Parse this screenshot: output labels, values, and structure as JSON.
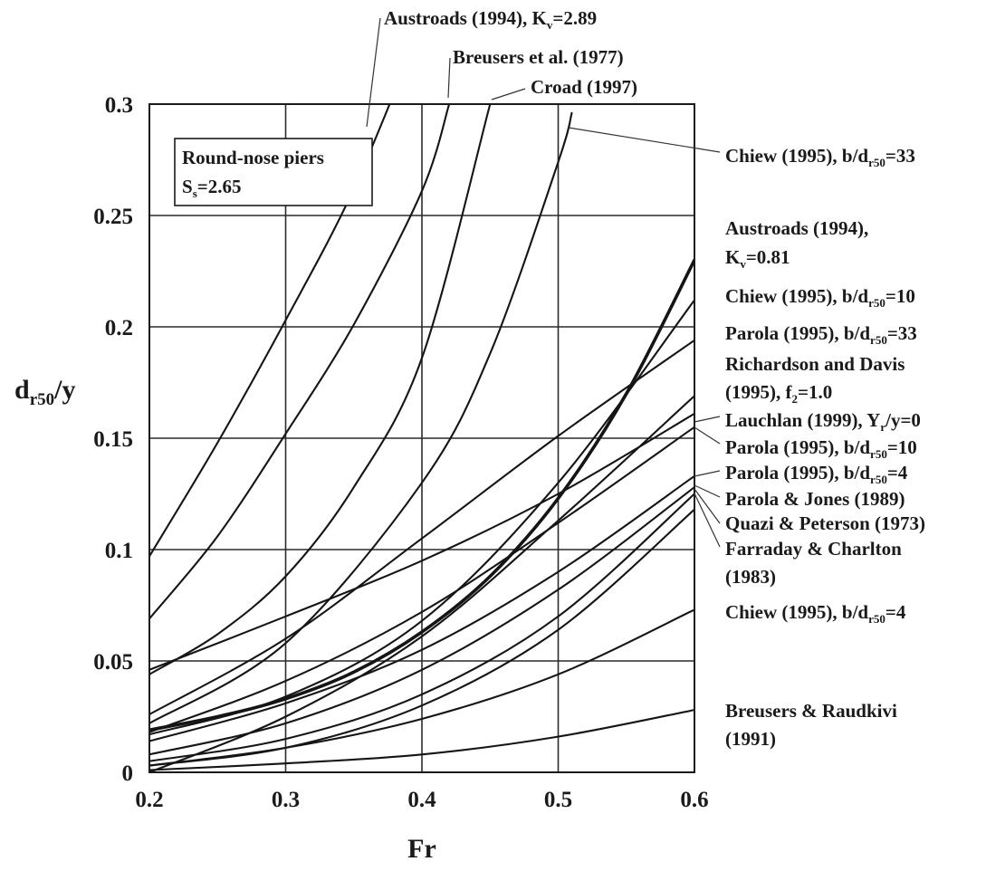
{
  "chart_data": {
    "type": "line",
    "xlabel": "Fr",
    "ylabel": {
      "main": "d",
      "sub": "r50",
      "tail": "/y"
    },
    "xlim": [
      0.2,
      0.6
    ],
    "ylim": [
      0,
      0.3
    ],
    "x_ticks": [
      "0.2",
      "0.3",
      "0.4",
      "0.5",
      "0.6"
    ],
    "y_ticks": [
      "0",
      "0.05",
      "0.1",
      "0.15",
      "0.2",
      "0.25",
      "0.3"
    ],
    "grid": true,
    "annotation_box": {
      "line1": "Round-nose piers",
      "line2": {
        "main": "S",
        "sub": "s",
        "tail": "=2.65"
      }
    },
    "series": [
      {
        "name": "Austroads (1994), Kv=2.89",
        "x": [
          0.2,
          0.25,
          0.3,
          0.35,
          0.4
        ],
        "y": [
          0.097,
          0.148,
          0.203,
          0.262,
          0.336
        ]
      },
      {
        "name": "Breusers et al. (1977)",
        "x": [
          0.2,
          0.25,
          0.3,
          0.35,
          0.4,
          0.42
        ],
        "y": [
          0.069,
          0.106,
          0.152,
          0.201,
          0.261,
          0.3
        ]
      },
      {
        "name": "Croad (1997)",
        "x": [
          0.2,
          0.25,
          0.3,
          0.35,
          0.4,
          0.45
        ],
        "y": [
          0.044,
          0.062,
          0.088,
          0.128,
          0.186,
          0.3
        ]
      },
      {
        "name": "Chiew (1995), b/dr50=33",
        "x": [
          0.2,
          0.3,
          0.4,
          0.45,
          0.5,
          0.51
        ],
        "y": [
          0.022,
          0.058,
          0.13,
          0.188,
          0.274,
          0.296
        ]
      },
      {
        "name": "Austroads (1994), Kv=0.81",
        "x": [
          0.2,
          0.25,
          0.3,
          0.35,
          0.4,
          0.45,
          0.5,
          0.55,
          0.6
        ],
        "y": [
          0.019,
          0.025,
          0.033,
          0.045,
          0.063,
          0.088,
          0.123,
          0.17,
          0.23
        ]
      },
      {
        "name": "Chiew (1995), b/dr50=10",
        "x": [
          0.2,
          0.3,
          0.4,
          0.5,
          0.6
        ],
        "y": [
          0.017,
          0.034,
          0.068,
          0.13,
          0.212
        ]
      },
      {
        "name": "Parola (1995), b/dr50=33",
        "x": [
          0.2,
          0.3,
          0.4,
          0.5,
          0.6
        ],
        "y": [
          0.026,
          0.06,
          0.105,
          0.151,
          0.194
        ]
      },
      {
        "name": "Richardson and Davis (1995), f2=1.0",
        "x": [
          0.2,
          0.3,
          0.4,
          0.5,
          0.6
        ],
        "y": [
          0.0,
          0.025,
          0.061,
          0.113,
          0.169
        ]
      },
      {
        "name": "Lauchlan (1999), Yr/y=0",
        "x": [
          0.2,
          0.3,
          0.4,
          0.5,
          0.6
        ],
        "y": [
          0.046,
          0.07,
          0.095,
          0.125,
          0.161
        ]
      },
      {
        "name": "Parola (1995), b/dr50=10",
        "x": [
          0.2,
          0.3,
          0.4,
          0.5,
          0.6
        ],
        "y": [
          0.018,
          0.041,
          0.072,
          0.112,
          0.155
        ]
      },
      {
        "name": "Parola (1995), b/dr50=4",
        "x": [
          0.2,
          0.3,
          0.4,
          0.5,
          0.6
        ],
        "y": [
          0.014,
          0.031,
          0.055,
          0.09,
          0.133
        ]
      },
      {
        "name": "Parola & Jones (1989)",
        "x": [
          0.2,
          0.3,
          0.4,
          0.5,
          0.6
        ],
        "y": [
          0.008,
          0.022,
          0.046,
          0.082,
          0.128
        ]
      },
      {
        "name": "Quazi & Peterson (1973)",
        "x": [
          0.2,
          0.3,
          0.4,
          0.5,
          0.6
        ],
        "y": [
          0.005,
          0.015,
          0.035,
          0.07,
          0.125
        ]
      },
      {
        "name": "Farraday & Charlton (1983)",
        "x": [
          0.2,
          0.3,
          0.4,
          0.5,
          0.6
        ],
        "y": [
          0.003,
          0.011,
          0.03,
          0.064,
          0.118
        ]
      },
      {
        "name": "Chiew (1995), b/dr50=4",
        "x": [
          0.2,
          0.3,
          0.4,
          0.5,
          0.6
        ],
        "y": [
          0.003,
          0.011,
          0.024,
          0.044,
          0.073
        ]
      },
      {
        "name": "Breusers & Raudkivi (1991)",
        "x": [
          0.2,
          0.3,
          0.4,
          0.5,
          0.6
        ],
        "y": [
          0.001,
          0.004,
          0.008,
          0.016,
          0.028
        ]
      }
    ],
    "labels": [
      {
        "id": "austroads-kv289",
        "parts": [
          {
            "t": "Austroads (1994), K"
          },
          {
            "t": "v",
            "sub": true
          },
          {
            "t": "=2.89"
          }
        ]
      },
      {
        "id": "breusers-1977",
        "parts": [
          {
            "t": "Breusers et al. (1977)"
          }
        ]
      },
      {
        "id": "croad-1997",
        "parts": [
          {
            "t": "Croad (1997)"
          }
        ]
      },
      {
        "id": "chiew-33",
        "parts": [
          {
            "t": "Chiew (1995), b/d"
          },
          {
            "t": "r50",
            "sub": true
          },
          {
            "t": "=33"
          }
        ]
      },
      {
        "id": "austroads-kv081-a",
        "parts": [
          {
            "t": "Austroads (1994),"
          }
        ]
      },
      {
        "id": "austroads-kv081-b",
        "parts": [
          {
            "t": "K"
          },
          {
            "t": "v",
            "sub": true
          },
          {
            "t": "=0.81"
          }
        ]
      },
      {
        "id": "chiew-10",
        "parts": [
          {
            "t": "Chiew (1995), b/d"
          },
          {
            "t": "r50",
            "sub": true
          },
          {
            "t": "=10"
          }
        ]
      },
      {
        "id": "parola-33",
        "parts": [
          {
            "t": "Parola (1995), b/d"
          },
          {
            "t": "r50",
            "sub": true
          },
          {
            "t": "=33"
          }
        ]
      },
      {
        "id": "richardson-a",
        "parts": [
          {
            "t": "Richardson and Davis"
          }
        ]
      },
      {
        "id": "richardson-b",
        "parts": [
          {
            "t": "(1995), f"
          },
          {
            "t": "2",
            "sub": true
          },
          {
            "t": "=1.0"
          }
        ]
      },
      {
        "id": "lauchlan",
        "parts": [
          {
            "t": "Lauchlan (1999), Y"
          },
          {
            "t": "r",
            "sub": true
          },
          {
            "t": "/y=0"
          }
        ]
      },
      {
        "id": "parola-10",
        "parts": [
          {
            "t": "Parola (1995), b/d"
          },
          {
            "t": "r50",
            "sub": true
          },
          {
            "t": "=10"
          }
        ]
      },
      {
        "id": "parola-4",
        "parts": [
          {
            "t": "Parola (1995), b/d"
          },
          {
            "t": "r50",
            "sub": true
          },
          {
            "t": "=4"
          }
        ]
      },
      {
        "id": "parola-jones",
        "parts": [
          {
            "t": "Parola & Jones (1989)"
          }
        ]
      },
      {
        "id": "quazi-peterson",
        "parts": [
          {
            "t": "Quazi & Peterson (1973)"
          }
        ]
      },
      {
        "id": "farraday-a",
        "parts": [
          {
            "t": "Farraday & Charlton"
          }
        ]
      },
      {
        "id": "farraday-b",
        "parts": [
          {
            "t": "(1983)"
          }
        ]
      },
      {
        "id": "chiew-4",
        "parts": [
          {
            "t": "Chiew (1995), b/d"
          },
          {
            "t": "r50",
            "sub": true
          },
          {
            "t": "=4"
          }
        ]
      },
      {
        "id": "breusers-raudkivi-a",
        "parts": [
          {
            "t": "Breusers & Raudkivi"
          }
        ]
      },
      {
        "id": "breusers-raudkivi-b",
        "parts": [
          {
            "t": "(1991)"
          }
        ]
      }
    ]
  }
}
